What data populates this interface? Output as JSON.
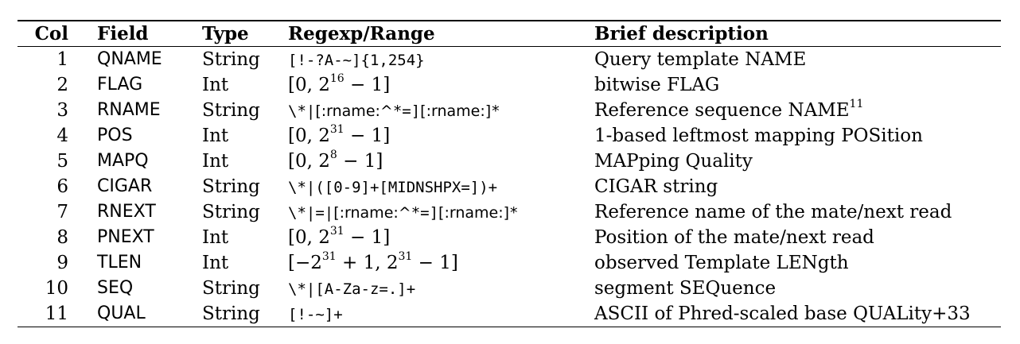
{
  "table": {
    "headers": {
      "col": "Col",
      "field": "Field",
      "type": "Type",
      "regex": "Regexp/Range",
      "desc": "Brief description"
    },
    "rows": [
      {
        "col": "1",
        "field": "QNAME",
        "type": "String",
        "regex": [
          {
            "t": "[!-?A-~]{1,254}",
            "f": "mono"
          }
        ],
        "desc": "Query template NAME",
        "desc_sup": ""
      },
      {
        "col": "2",
        "field": "FLAG",
        "type": "Int",
        "regex": [
          {
            "t": "[0, 2",
            "f": "serif"
          },
          {
            "t": "16",
            "f": "sup"
          },
          {
            "t": " − 1]",
            "f": "serif"
          }
        ],
        "desc": "bitwise FLAG",
        "desc_sup": ""
      },
      {
        "col": "3",
        "field": "RNAME",
        "type": "String",
        "regex": [
          {
            "t": "\\*|",
            "f": "mono"
          },
          {
            "t": "[:rname:^",
            "f": "sans"
          },
          {
            "t": "*=]",
            "f": "mono"
          },
          {
            "t": "[:rname:]",
            "f": "sans"
          },
          {
            "t": "*",
            "f": "mono"
          }
        ],
        "desc": "Reference sequence NAME",
        "desc_sup": "11"
      },
      {
        "col": "4",
        "field": "POS",
        "type": "Int",
        "regex": [
          {
            "t": "[0, 2",
            "f": "serif"
          },
          {
            "t": "31",
            "f": "sup"
          },
          {
            "t": " − 1]",
            "f": "serif"
          }
        ],
        "desc": "1-based leftmost mapping POSition",
        "desc_sup": ""
      },
      {
        "col": "5",
        "field": "MAPQ",
        "type": "Int",
        "regex": [
          {
            "t": "[0, 2",
            "f": "serif"
          },
          {
            "t": "8",
            "f": "sup"
          },
          {
            "t": " − 1]",
            "f": "serif"
          }
        ],
        "desc": "MAPping Quality",
        "desc_sup": ""
      },
      {
        "col": "6",
        "field": "CIGAR",
        "type": "String",
        "regex": [
          {
            "t": "\\*|([0-9]+[MIDNSHPX=])+",
            "f": "mono"
          }
        ],
        "desc": "CIGAR string",
        "desc_sup": ""
      },
      {
        "col": "7",
        "field": "RNEXT",
        "type": "String",
        "regex": [
          {
            "t": "\\*|=|",
            "f": "mono"
          },
          {
            "t": "[:rname:^",
            "f": "sans"
          },
          {
            "t": "*=]",
            "f": "mono"
          },
          {
            "t": "[:rname:]",
            "f": "sans"
          },
          {
            "t": "*",
            "f": "mono"
          }
        ],
        "desc": "Reference name of the mate/next read",
        "desc_sup": ""
      },
      {
        "col": "8",
        "field": "PNEXT",
        "type": "Int",
        "regex": [
          {
            "t": "[0, 2",
            "f": "serif"
          },
          {
            "t": "31",
            "f": "sup"
          },
          {
            "t": " − 1]",
            "f": "serif"
          }
        ],
        "desc": "Position of the mate/next read",
        "desc_sup": ""
      },
      {
        "col": "9",
        "field": "TLEN",
        "type": "Int",
        "regex": [
          {
            "t": "[−2",
            "f": "serif"
          },
          {
            "t": "31",
            "f": "sup"
          },
          {
            "t": " + 1, 2",
            "f": "serif"
          },
          {
            "t": "31",
            "f": "sup"
          },
          {
            "t": " − 1]",
            "f": "serif"
          }
        ],
        "desc": "observed Template LENgth",
        "desc_sup": ""
      },
      {
        "col": "10",
        "field": "SEQ",
        "type": "String",
        "regex": [
          {
            "t": "\\*|[A-Za-z=.]+",
            "f": "mono"
          }
        ],
        "desc": "segment SEQuence",
        "desc_sup": ""
      },
      {
        "col": "11",
        "field": "QUAL",
        "type": "String",
        "regex": [
          {
            "t": "[!-~]+",
            "f": "mono"
          }
        ],
        "desc": "ASCII of Phred-scaled base QUALity+33",
        "desc_sup": ""
      }
    ]
  }
}
